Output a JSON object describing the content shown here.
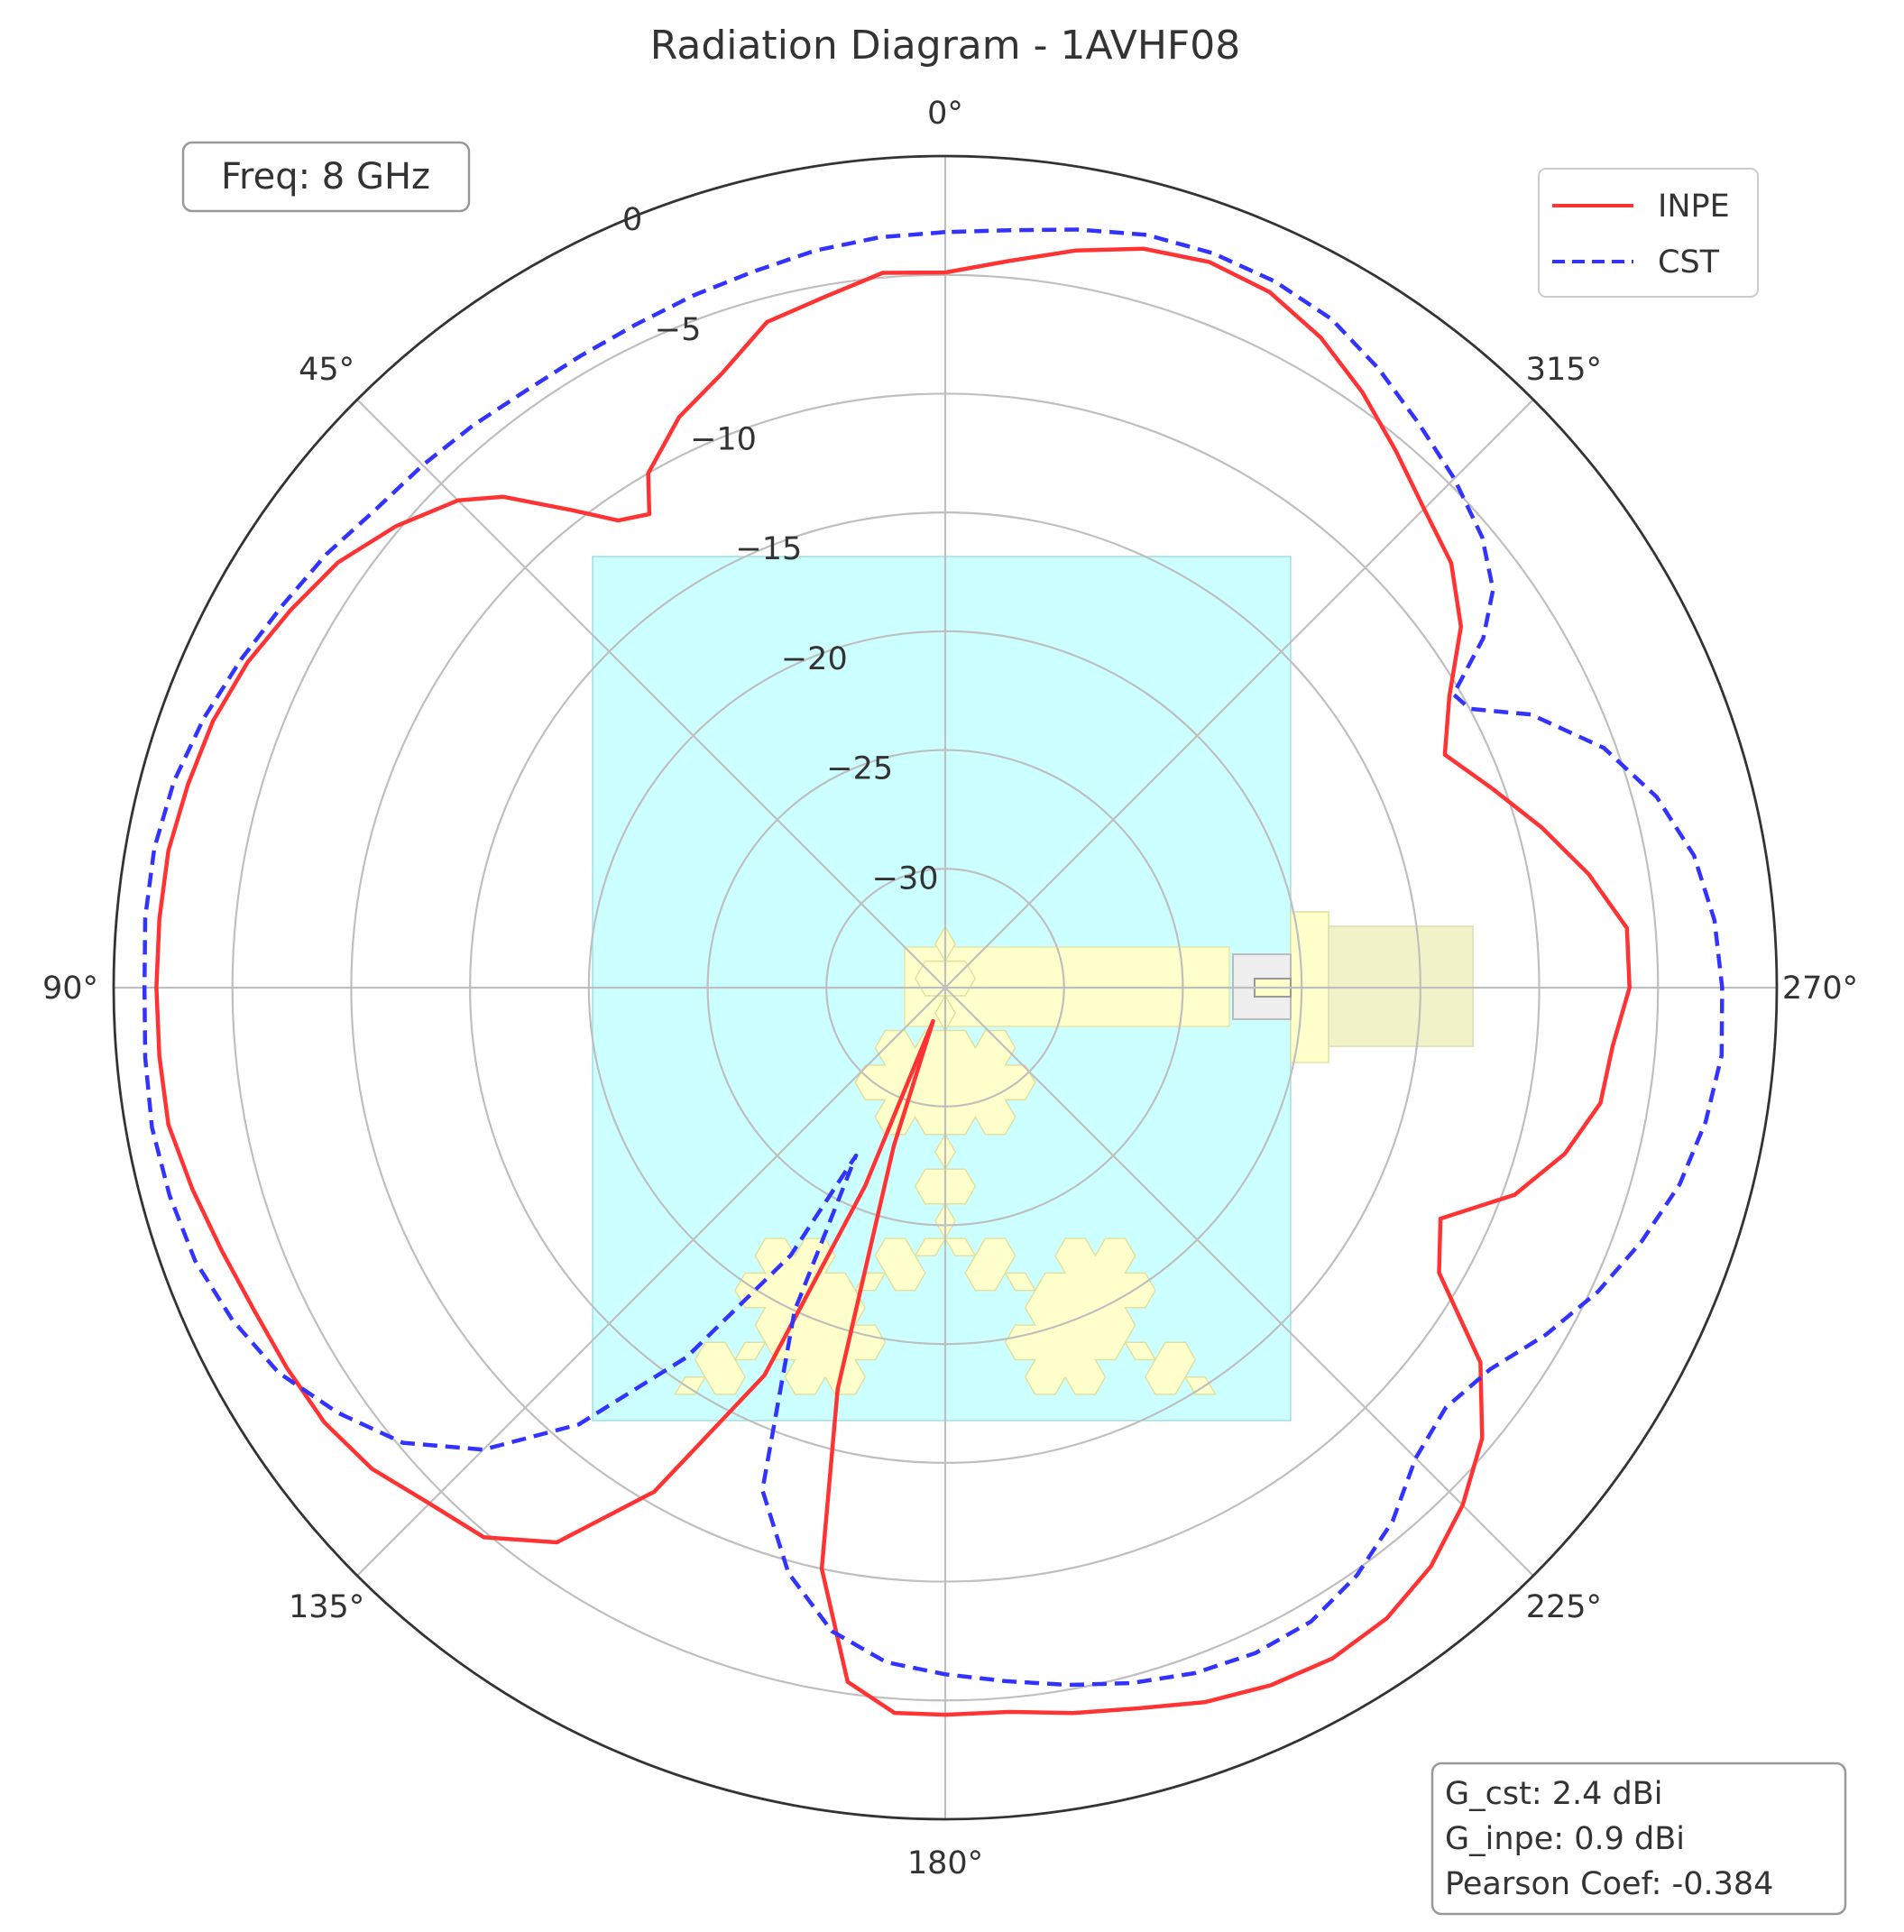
{
  "chart_data": {
    "type": "polar-line",
    "title": "Radiation Diagram - 1AVHF08",
    "theta_direction": "counterclockwise",
    "theta_zero": "top",
    "angle_ticks": [
      {
        "deg": 0,
        "label": "0°"
      },
      {
        "deg": 45,
        "label": "45°"
      },
      {
        "deg": 90,
        "label": "90°"
      },
      {
        "deg": 135,
        "label": "135°"
      },
      {
        "deg": 180,
        "label": "180°"
      },
      {
        "deg": 225,
        "label": "225°"
      },
      {
        "deg": 270,
        "label": "270°"
      },
      {
        "deg": 315,
        "label": "315°"
      }
    ],
    "r_range": [
      -35,
      0
    ],
    "r_ticks": [
      {
        "value": -30,
        "label": "−30"
      },
      {
        "value": -25,
        "label": "−25"
      },
      {
        "value": -20,
        "label": "−20"
      },
      {
        "value": -15,
        "label": "−15"
      },
      {
        "value": -10,
        "label": "−10"
      },
      {
        "value": -5,
        "label": "−5"
      },
      {
        "value": 0,
        "label": "0"
      }
    ],
    "grid": true,
    "legend_position": "top-right",
    "series": [
      {
        "name": "INPE",
        "color": "#ff3333",
        "style": "solid",
        "points": [
          [
            0,
            -4.9
          ],
          [
            5,
            -4.8
          ],
          [
            10,
            -5.5
          ],
          [
            15,
            -6.0
          ],
          [
            20,
            -7.5
          ],
          [
            25,
            -8.5
          ],
          [
            30,
            -10.0
          ],
          [
            32,
            -11.5
          ],
          [
            35,
            -11.0
          ],
          [
            38,
            -9.5
          ],
          [
            42,
            -7.2
          ],
          [
            45,
            -6.0
          ],
          [
            50,
            -4.8
          ],
          [
            55,
            -3.8
          ],
          [
            60,
            -3.2
          ],
          [
            65,
            -2.6
          ],
          [
            70,
            -2.2
          ],
          [
            75,
            -2.0
          ],
          [
            80,
            -1.8
          ],
          [
            85,
            -1.8
          ],
          [
            90,
            -1.8
          ],
          [
            95,
            -1.8
          ],
          [
            100,
            -1.8
          ],
          [
            105,
            -2.2
          ],
          [
            110,
            -2.6
          ],
          [
            115,
            -2.9
          ],
          [
            120,
            -3.0
          ],
          [
            125,
            -3.1
          ],
          [
            130,
            -3.5
          ],
          [
            135,
            -4.3
          ],
          [
            140,
            -4.8
          ],
          [
            145,
            -6.5
          ],
          [
            150,
            -10.5
          ],
          [
            155,
            -17.0
          ],
          [
            158,
            -26.0
          ],
          [
            160,
            -33.5
          ],
          [
            162,
            -28.0
          ],
          [
            165,
            -17.5
          ],
          [
            168,
            -10.0
          ],
          [
            172,
            -5.5
          ],
          [
            176,
            -4.4
          ],
          [
            180,
            -4.4
          ],
          [
            185,
            -4.4
          ],
          [
            190,
            -4.0
          ],
          [
            195,
            -3.6
          ],
          [
            200,
            -3.0
          ],
          [
            205,
            -2.6
          ],
          [
            210,
            -2.4
          ],
          [
            215,
            -2.6
          ],
          [
            220,
            -3.2
          ],
          [
            225,
            -4.2
          ],
          [
            230,
            -5.5
          ],
          [
            235,
            -7.5
          ],
          [
            240,
            -11.0
          ],
          [
            245,
            -12.0
          ],
          [
            250,
            -9.5
          ],
          [
            255,
            -8.0
          ],
          [
            260,
            -7.0
          ],
          [
            265,
            -6.8
          ],
          [
            270,
            -6.2
          ],
          [
            275,
            -6.2
          ],
          [
            280,
            -7.5
          ],
          [
            285,
            -9.0
          ],
          [
            290,
            -10.5
          ],
          [
            295,
            -11.8
          ],
          [
            300,
            -10.5
          ],
          [
            305,
            -8.5
          ],
          [
            310,
            -7.2
          ],
          [
            315,
            -6.5
          ],
          [
            320,
            -5.5
          ],
          [
            325,
            -4.4
          ],
          [
            330,
            -3.4
          ],
          [
            335,
            -2.7
          ],
          [
            340,
            -2.5
          ],
          [
            345,
            -2.8
          ],
          [
            350,
            -3.5
          ],
          [
            355,
            -4.3
          ],
          [
            360,
            -4.9
          ]
        ]
      },
      {
        "name": "CST",
        "color": "#3333ff",
        "style": "dashed",
        "points": [
          [
            0,
            -3.2
          ],
          [
            5,
            -3.3
          ],
          [
            10,
            -3.5
          ],
          [
            15,
            -3.8
          ],
          [
            20,
            -4.0
          ],
          [
            25,
            -4.2
          ],
          [
            30,
            -4.3
          ],
          [
            35,
            -4.3
          ],
          [
            40,
            -4.1
          ],
          [
            45,
            -3.9
          ],
          [
            50,
            -3.7
          ],
          [
            55,
            -3.2
          ],
          [
            60,
            -2.8
          ],
          [
            65,
            -2.3
          ],
          [
            70,
            -1.8
          ],
          [
            75,
            -1.4
          ],
          [
            80,
            -1.2
          ],
          [
            85,
            -1.2
          ],
          [
            90,
            -1.3
          ],
          [
            95,
            -1.2
          ],
          [
            100,
            -1.1
          ],
          [
            105,
            -1.2
          ],
          [
            110,
            -1.4
          ],
          [
            115,
            -1.9
          ],
          [
            120,
            -2.6
          ],
          [
            125,
            -3.8
          ],
          [
            130,
            -5.2
          ],
          [
            135,
            -7.5
          ],
          [
            140,
            -11.0
          ],
          [
            145,
            -16.0
          ],
          [
            150,
            -22.0
          ],
          [
            152,
            -27.0
          ],
          [
            155,
            -20.0
          ],
          [
            160,
            -12.5
          ],
          [
            165,
            -9.5
          ],
          [
            170,
            -7.5
          ],
          [
            175,
            -6.5
          ],
          [
            180,
            -6.1
          ],
          [
            185,
            -5.7
          ],
          [
            190,
            -5.2
          ],
          [
            195,
            -4.7
          ],
          [
            200,
            -4.3
          ],
          [
            205,
            -4.1
          ],
          [
            210,
            -4.2
          ],
          [
            215,
            -4.8
          ],
          [
            220,
            -5.7
          ],
          [
            225,
            -7.0
          ],
          [
            230,
            -7.5
          ],
          [
            235,
            -7.0
          ],
          [
            240,
            -5.8
          ],
          [
            245,
            -4.7
          ],
          [
            250,
            -3.8
          ],
          [
            255,
            -3.0
          ],
          [
            260,
            -2.5
          ],
          [
            265,
            -2.2
          ],
          [
            270,
            -2.3
          ],
          [
            275,
            -2.5
          ],
          [
            280,
            -3.0
          ],
          [
            285,
            -4.0
          ],
          [
            290,
            -5.5
          ],
          [
            295,
            -7.8
          ],
          [
            298,
            -10.0
          ],
          [
            300,
            -10.3
          ],
          [
            303,
            -8.0
          ],
          [
            306,
            -6.5
          ],
          [
            310,
            -5.5
          ],
          [
            315,
            -4.7
          ],
          [
            320,
            -4.0
          ],
          [
            325,
            -3.2
          ],
          [
            330,
            -2.5
          ],
          [
            335,
            -2.2
          ],
          [
            340,
            -2.1
          ],
          [
            345,
            -2.2
          ],
          [
            350,
            -2.6
          ],
          [
            355,
            -3.0
          ],
          [
            360,
            -3.2
          ]
        ]
      }
    ],
    "legend": [
      {
        "label": "INPE",
        "color": "#ff3333",
        "style": "solid"
      },
      {
        "label": "CST",
        "color": "#3333ff",
        "style": "dashed"
      }
    ],
    "frequency_label": "Freq: 8 GHz",
    "stats": [
      "G_cst: 2.4 dBi",
      "G_inpe: 0.9 dBi",
      "Pearson Coef: -0.384"
    ],
    "colors": {
      "background_box": "#ccffff",
      "antenna": "#ffffcc",
      "grid": "#bfbfbf",
      "outer_circle": "#333333",
      "text": "#333333"
    }
  }
}
